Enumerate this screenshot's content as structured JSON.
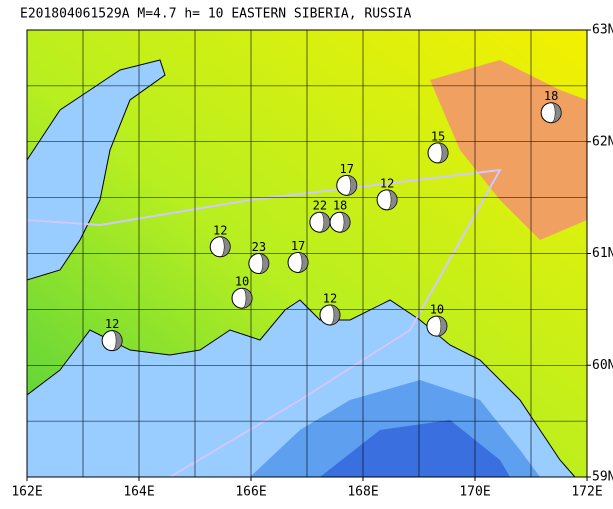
{
  "title": "E201804061529A  M=4.7  h= 10  EASTERN SIBERIA, RUSSIA",
  "map": {
    "lonlim": [
      162,
      172
    ],
    "latlim": [
      59,
      63
    ],
    "lon_ticks": [
      {
        "value": 162,
        "label": "162E"
      },
      {
        "value": 164,
        "label": "164E"
      },
      {
        "value": 166,
        "label": "166E"
      },
      {
        "value": 168,
        "label": "168E"
      },
      {
        "value": 170,
        "label": "170E"
      },
      {
        "value": 172,
        "label": "172E"
      }
    ],
    "lat_ticks": [
      {
        "value": 59,
        "label": "59N"
      },
      {
        "value": 60,
        "label": "60N"
      },
      {
        "value": 61,
        "label": "61N"
      },
      {
        "value": 62,
        "label": "62N"
      },
      {
        "value": 63,
        "label": "63N"
      }
    ],
    "events": [
      {
        "lon": 171.36,
        "lat": 62.26,
        "depth": 18
      },
      {
        "lon": 169.34,
        "lat": 61.9,
        "depth": 15
      },
      {
        "lon": 167.71,
        "lat": 61.61,
        "depth": 17
      },
      {
        "lon": 168.43,
        "lat": 61.48,
        "depth": 12
      },
      {
        "lon": 163.52,
        "lat": 60.22,
        "depth": 12
      },
      {
        "lon": 169.32,
        "lat": 60.35,
        "depth": 10
      },
      {
        "lon": 165.45,
        "lat": 61.06,
        "depth": 12
      },
      {
        "lon": 166.14,
        "lat": 60.91,
        "depth": 23
      },
      {
        "lon": 166.84,
        "lat": 60.92,
        "depth": 17
      },
      {
        "lon": 167.23,
        "lat": 61.28,
        "depth": 22
      },
      {
        "lon": 167.59,
        "lat": 61.28,
        "depth": 18
      },
      {
        "lon": 167.41,
        "lat": 60.45,
        "depth": 12
      },
      {
        "lon": 165.84,
        "lat": 60.6,
        "depth": 10
      }
    ]
  }
}
